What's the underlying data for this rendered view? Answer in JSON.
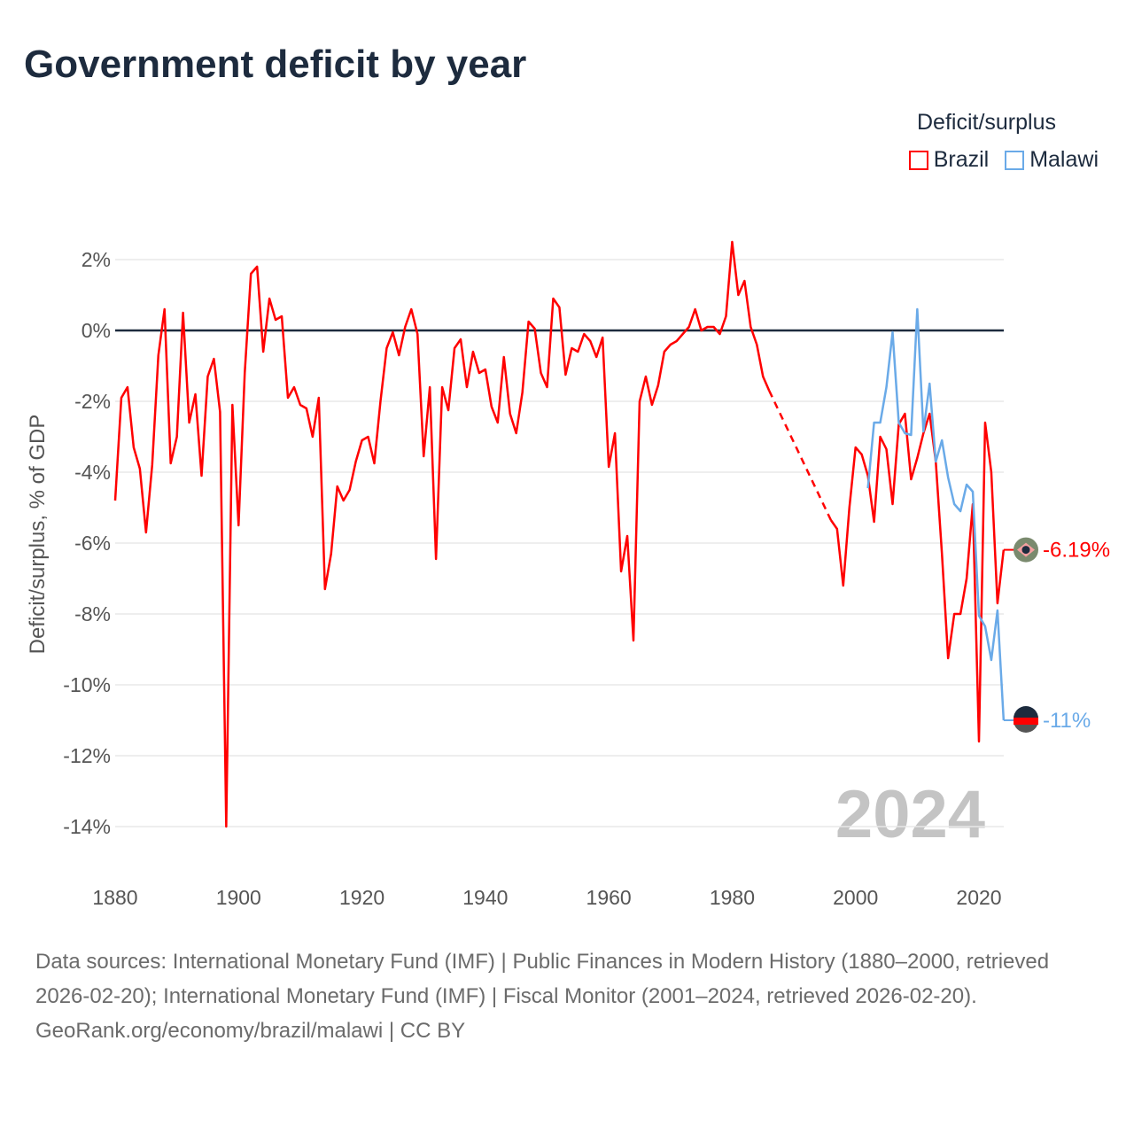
{
  "title": "Government deficit by year",
  "legend": {
    "title": "Deficit/surplus",
    "items": [
      {
        "label": "Brazil",
        "color": "#ff0000"
      },
      {
        "label": "Malawi",
        "color": "#6aaae8"
      }
    ]
  },
  "footer": {
    "sources": "Data sources: International Monetary Fund (IMF) | Public Finances in Modern History (1880–2000, retrieved 2026-02-20); International Monetary Fund (IMF) | Fiscal Monitor (2001–2024, retrieved 2026-02-20).",
    "credit": "GeoRank.org/economy/brazil/malawi | CC BY"
  },
  "chart_data": {
    "type": "line",
    "title": "Government deficit by year",
    "xlabel": "",
    "ylabel": "Deficit/surplus, % of GDP",
    "xlim": [
      1880,
      2024
    ],
    "ylim": [
      -14,
      2.5
    ],
    "xticks": [
      1880,
      1900,
      1920,
      1940,
      1960,
      1980,
      2000,
      2020
    ],
    "xtick_labels": [
      "1880",
      "1900",
      "1920",
      "1940",
      "1960",
      "1980",
      "2000",
      "2020"
    ],
    "yticks": [
      2,
      0,
      -2,
      -4,
      -6,
      -8,
      -10,
      -12,
      -14
    ],
    "ytick_labels": [
      "2%",
      "0%",
      "-2%",
      "-4%",
      "-6%",
      "-8%",
      "-10%",
      "-12%",
      "-14%"
    ],
    "grid": true,
    "year_watermark": "2024",
    "legend_position": "top-right",
    "series": [
      {
        "name": "Brazil",
        "color": "#ff0000",
        "end_label": "-6.19%",
        "start_year": 1880,
        "values": [
          -4.8,
          -1.9,
          -1.6,
          -3.3,
          -3.9,
          -5.7,
          -3.8,
          -0.7,
          0.6,
          -3.75,
          -3.0,
          0.5,
          -2.6,
          -1.8,
          -4.1,
          -1.3,
          -0.8,
          -2.3,
          -14,
          -2.1,
          -5.5,
          -1.2,
          1.6,
          1.8,
          -0.6,
          0.9,
          0.3,
          0.4,
          -1.9,
          -1.6,
          -2.1,
          -2.2,
          -3.0,
          -1.9,
          -7.3,
          -6.3,
          -4.4,
          -4.8,
          -4.5,
          -3.7,
          -3.1,
          -3.0,
          -3.75,
          -2.0,
          -0.5,
          -0.05,
          -0.7,
          0.1,
          0.6,
          -0.1,
          -3.55,
          -1.6,
          -6.45,
          -1.6,
          -2.25,
          -0.5,
          -0.25,
          -1.6,
          -0.6,
          -1.2,
          -1.1,
          -2.15,
          -2.6,
          -0.75,
          -2.35,
          -2.9,
          -1.75,
          0.25,
          0.05,
          -1.2,
          -1.6,
          0.9,
          0.65,
          -1.25,
          -0.5,
          -0.6,
          -0.1,
          -0.3,
          -0.75,
          -0.2,
          -3.85,
          -2.9,
          -6.8,
          -5.8,
          -8.75,
          -2.0,
          -1.3,
          -2.1,
          -1.55,
          -0.6,
          -0.4,
          -0.3,
          -0.1,
          0.1,
          0.6,
          0.0,
          0.1,
          0.1,
          -0.1,
          0.4,
          2.5,
          1.0,
          1.4,
          0.1,
          -0.4,
          -1.3,
          -1.7,
          null,
          null,
          null,
          null,
          null,
          null,
          null,
          null,
          null,
          -5.35,
          -5.6,
          -7.2,
          -5.0,
          -3.3,
          -3.5,
          -4.1,
          -5.4,
          -3.0,
          -3.35,
          -4.9,
          -2.65,
          -2.35,
          -4.2,
          -3.6,
          -2.9,
          -2.35,
          -3.7,
          -6.3,
          -9.25,
          -8.0,
          -8.0,
          -7.0,
          -4.9,
          -11.6,
          -2.6,
          -4.0,
          -7.7,
          -6.19
        ]
      },
      {
        "name": "Malawi",
        "color": "#6aaae8",
        "end_label": "-11%",
        "start_year": 2002,
        "values": [
          -4.45,
          -2.6,
          -2.6,
          -1.6,
          -0.05,
          -2.6,
          -2.9,
          -2.95,
          0.6,
          -2.85,
          -1.5,
          -3.7,
          -3.1,
          -4.15,
          -4.9,
          -5.1,
          -4.35,
          -4.55,
          -8.05,
          -8.35,
          -9.3,
          -7.9,
          -11.0
        ]
      }
    ]
  }
}
